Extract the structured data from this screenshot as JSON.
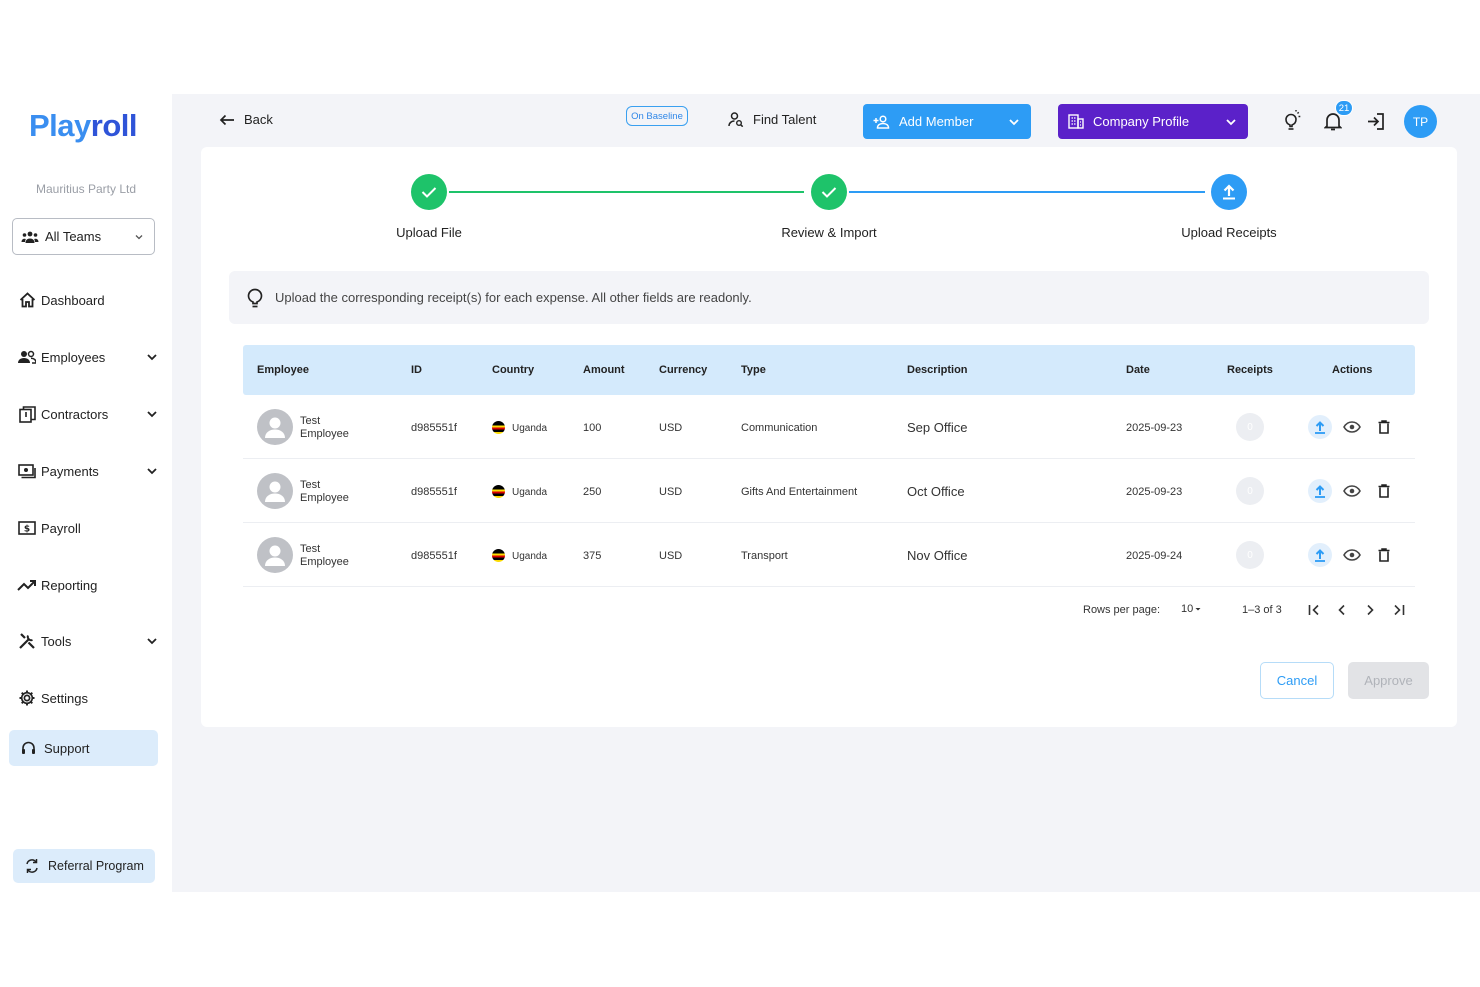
{
  "sidebar": {
    "logo_part1": "Play",
    "logo_part2": "roll",
    "company": "Mauritius Party Ltd",
    "team_select": "All Teams",
    "items": [
      {
        "label": "Dashboard",
        "icon": "home-icon",
        "chevron": false
      },
      {
        "label": "Employees",
        "icon": "people-icon",
        "chevron": true
      },
      {
        "label": "Contractors",
        "icon": "contract-icon",
        "chevron": true
      },
      {
        "label": "Payments",
        "icon": "payment-icon",
        "chevron": true
      },
      {
        "label": "Payroll",
        "icon": "payroll-icon",
        "chevron": false
      },
      {
        "label": "Reporting",
        "icon": "trend-icon",
        "chevron": false
      },
      {
        "label": "Tools",
        "icon": "tools-icon",
        "chevron": true
      },
      {
        "label": "Settings",
        "icon": "gear-icon",
        "chevron": false
      }
    ],
    "support": "Support",
    "referral": "Referral Program"
  },
  "topbar": {
    "back": "Back",
    "baseline": "On Baseline",
    "find_talent": "Find Talent",
    "add_member": "Add Member",
    "company_profile": "Company Profile",
    "notifications": "21",
    "avatar": "TP"
  },
  "stepper": [
    {
      "label": "Upload File",
      "state": "done"
    },
    {
      "label": "Review & Import",
      "state": "done"
    },
    {
      "label": "Upload Receipts",
      "state": "active"
    }
  ],
  "info": "Upload the corresponding receipt(s) for each expense. All other fields are readonly.",
  "table": {
    "headers": [
      "Employee",
      "ID",
      "Country",
      "Amount",
      "Currency",
      "Type",
      "Description",
      "Date",
      "Receipts",
      "Actions"
    ],
    "rows": [
      {
        "first": "Test",
        "last": "Employee",
        "id": "d985551f",
        "country": "Uganda",
        "amount": "100",
        "currency": "USD",
        "type": "Communication",
        "description": "Sep Office",
        "date": "2025-09-23",
        "receipts": "0"
      },
      {
        "first": "Test",
        "last": "Employee",
        "id": "d985551f",
        "country": "Uganda",
        "amount": "250",
        "currency": "USD",
        "type": "Gifts And Entertainment",
        "description": "Oct Office",
        "date": "2025-09-23",
        "receipts": "0"
      },
      {
        "first": "Test",
        "last": "Employee",
        "id": "d985551f",
        "country": "Uganda",
        "amount": "375",
        "currency": "USD",
        "type": "Transport",
        "description": "Nov Office",
        "date": "2025-09-24",
        "receipts": "0"
      }
    ]
  },
  "pagination": {
    "rows_per_page_label": "Rows per page:",
    "rows_per_page": "10",
    "range": "1–3 of 3"
  },
  "actions": {
    "cancel": "Cancel",
    "approve": "Approve"
  },
  "colors": {
    "primary": "#2d9cf5",
    "brand_purple": "#5b21c9",
    "success": "#1ec36a"
  }
}
